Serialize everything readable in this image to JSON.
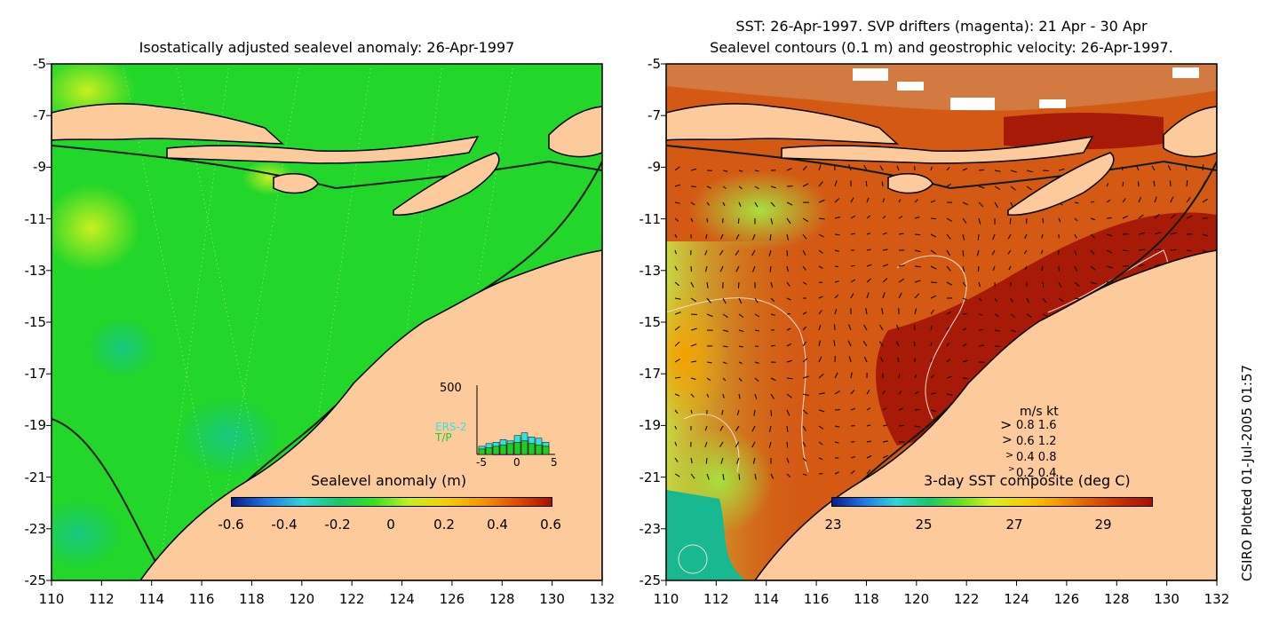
{
  "left_panel": {
    "title": "Isostatically adjusted sealevel anomaly: 26-Apr-1997",
    "colorbar_title": "Sealevel anomaly (m)",
    "colorbar_ticks": [
      "-0.6",
      "-0.4",
      "-0.2",
      "0",
      "0.2",
      "0.4",
      "0.6"
    ],
    "colorbar_colors": [
      "#0a1a8a",
      "#1e7be6",
      "#2ed6d6",
      "#18c86a",
      "#33e31c",
      "#c8f020",
      "#f5d000",
      "#f59a00",
      "#e05000",
      "#a81000"
    ],
    "histogram": {
      "ymax_label": "500",
      "series_labels": [
        "ERS-2",
        "T/P"
      ],
      "series_colors": [
        "#33e0e0",
        "#22cc22"
      ],
      "x_ticks": [
        "-5",
        "0",
        "5"
      ],
      "ers2_counts": [
        60,
        80,
        90,
        110,
        100,
        140,
        160,
        130,
        120,
        90
      ],
      "tp_counts": [
        40,
        50,
        60,
        70,
        80,
        90,
        100,
        80,
        70,
        60
      ]
    }
  },
  "right_panel": {
    "title_line1": "SST: 26-Apr-1997. SVP drifters (magenta): 21 Apr - 30 Apr",
    "title_line2": "Sealevel contours (0.1 m) and geostrophic velocity: 26-Apr-1997.",
    "colorbar_title": "3-day SST composite (deg C)",
    "colorbar_ticks": [
      "23",
      "25",
      "27",
      "29"
    ],
    "colorbar_colors": [
      "#0a1a8a",
      "#1e7be6",
      "#2ed6d6",
      "#18c86a",
      "#66e31c",
      "#d8f020",
      "#f5d000",
      "#f5a000",
      "#e06000",
      "#c83000",
      "#a81000"
    ],
    "velocity_legend": {
      "header": "m/s  kt",
      "rows": [
        "0.8  1.6",
        "0.6  1.2",
        "0.4  0.8",
        "0.2  0.4"
      ]
    }
  },
  "axes": {
    "y_ticks": [
      "-5",
      "-7",
      "-9",
      "-11",
      "-13",
      "-15",
      "-17",
      "-19",
      "-21",
      "-23",
      "-25"
    ],
    "x_ticks": [
      "110",
      "112",
      "114",
      "116",
      "118",
      "120",
      "122",
      "124",
      "126",
      "128",
      "130",
      "132"
    ]
  },
  "footer": {
    "credit": "CSIRO Plotted 01-Jul-2005 01:57"
  },
  "colors": {
    "land": "#fdcb9b",
    "ocean_left": "#22d62a",
    "ocean_right": "#d45a14",
    "ocean_right_dark": "#a81a08"
  }
}
